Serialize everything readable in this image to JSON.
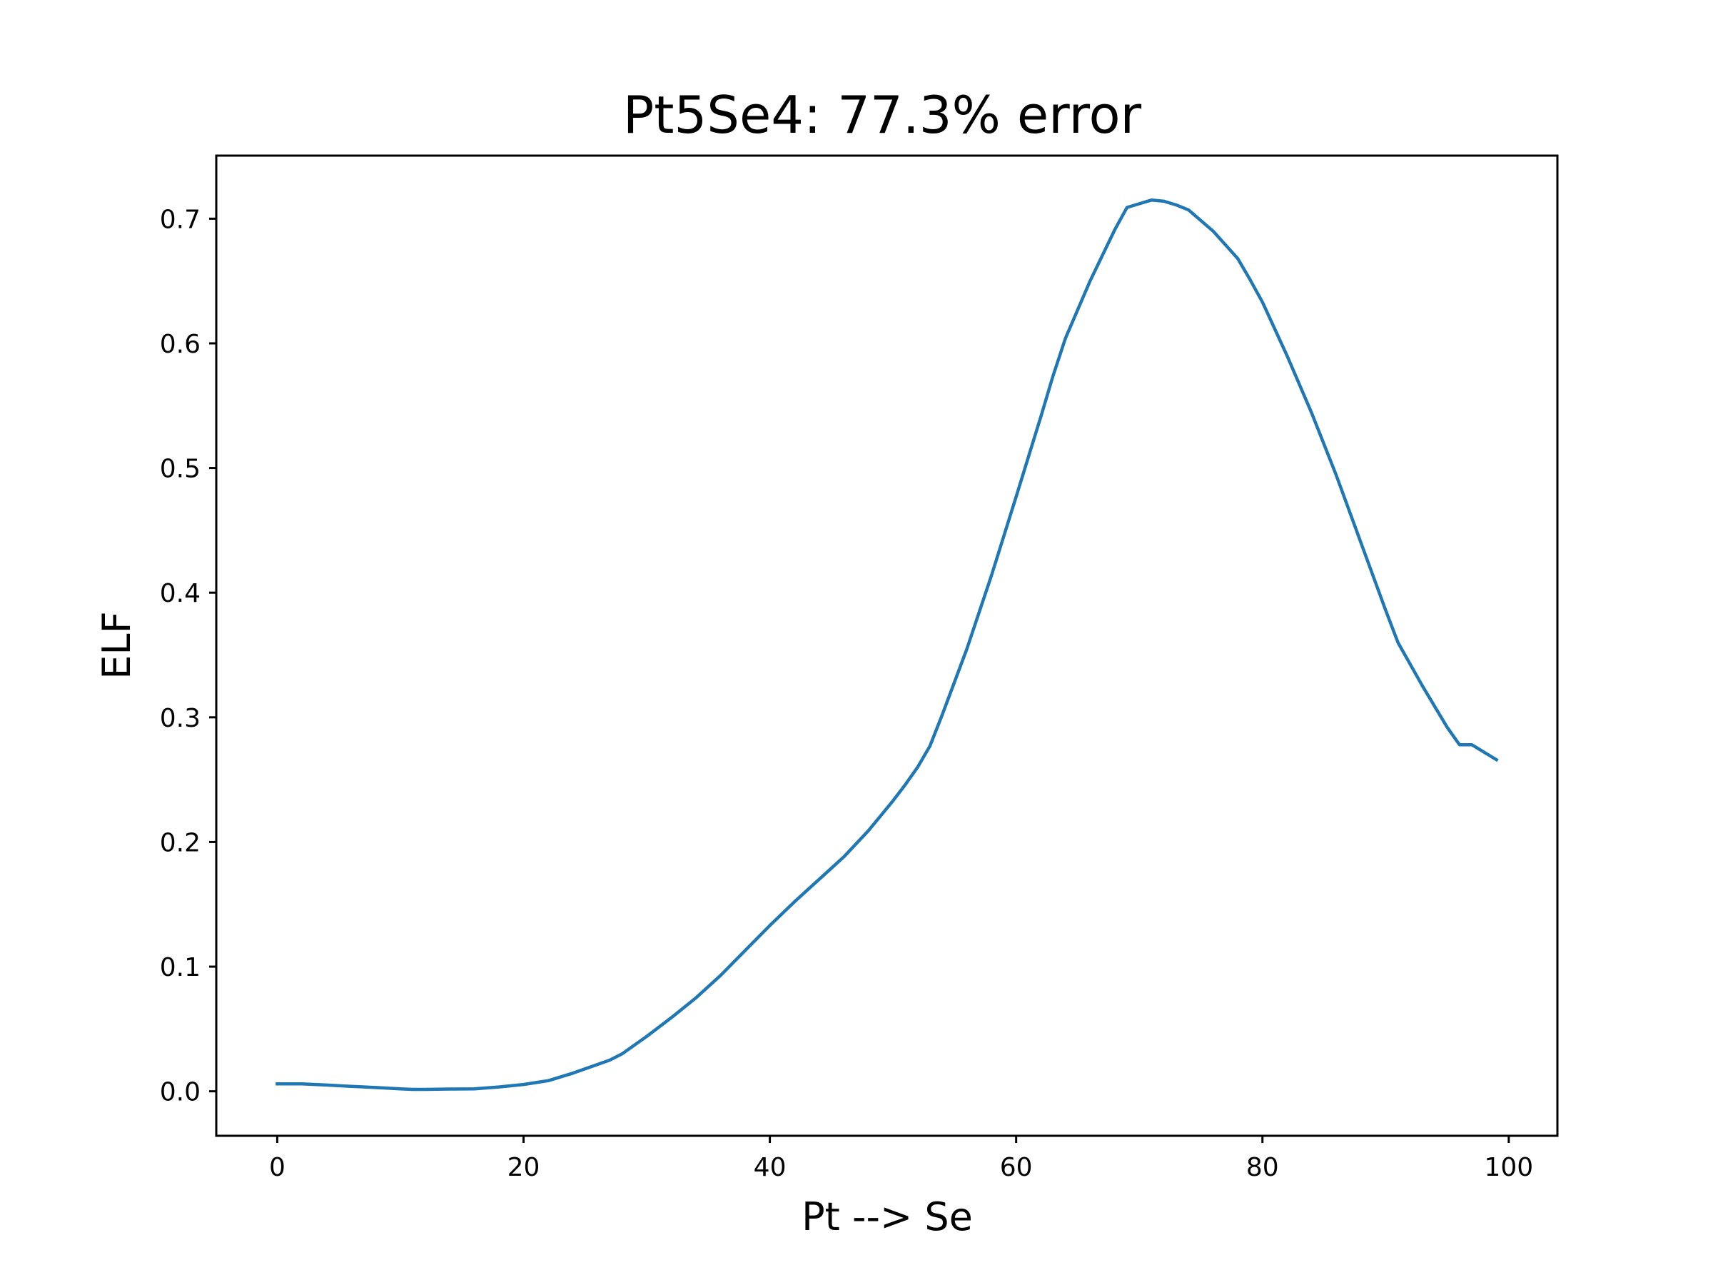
{
  "chart_data": {
    "type": "line",
    "title": "Pt5Se4: 77.3% error",
    "xlabel": "Pt --> Se",
    "ylabel": "ELF",
    "xlim": [
      -4.95,
      103.95
    ],
    "ylim": [
      -0.0357,
      0.7506
    ],
    "xticks": [
      0,
      20,
      40,
      60,
      80,
      100
    ],
    "xtick_labels": [
      "0",
      "20",
      "40",
      "60",
      "80",
      "100"
    ],
    "yticks": [
      0.0,
      0.1,
      0.2,
      0.3,
      0.4,
      0.5,
      0.6,
      0.7
    ],
    "ytick_labels": [
      "0.0",
      "0.1",
      "0.2",
      "0.3",
      "0.4",
      "0.5",
      "0.6",
      "0.7"
    ],
    "grid": false,
    "legend": "none",
    "series": [
      {
        "color": "#1f77b4",
        "x": [
          0,
          2,
          4,
          6,
          8,
          10,
          11,
          12,
          14,
          16,
          18,
          20,
          22,
          24,
          26,
          27,
          28,
          30,
          32,
          34,
          36,
          38,
          40,
          42,
          44,
          45,
          46,
          48,
          50,
          51,
          52,
          53,
          54,
          56,
          58,
          60,
          61,
          62,
          63,
          64,
          66,
          68,
          69,
          70,
          71,
          72,
          73,
          74,
          76,
          78,
          79,
          80,
          82,
          84,
          86,
          88,
          90,
          91,
          93,
          95,
          96,
          97,
          99
        ],
        "y": [
          0.006,
          0.006,
          0.005,
          0.004,
          0.003,
          0.002,
          0.0015,
          0.0015,
          0.0018,
          0.002,
          0.0035,
          0.0055,
          0.0085,
          0.0145,
          0.0215,
          0.025,
          0.03,
          0.044,
          0.059,
          0.075,
          0.093,
          0.113,
          0.133,
          0.152,
          0.17,
          0.179,
          0.188,
          0.209,
          0.233,
          0.246,
          0.26,
          0.277,
          0.302,
          0.355,
          0.414,
          0.477,
          0.509,
          0.541,
          0.574,
          0.604,
          0.65,
          0.691,
          0.709,
          0.712,
          0.715,
          0.714,
          0.711,
          0.707,
          0.69,
          0.668,
          0.651,
          0.633,
          0.59,
          0.544,
          0.494,
          0.44,
          0.386,
          0.36,
          0.325,
          0.292,
          0.278,
          0.278,
          0.266
        ]
      }
    ]
  }
}
